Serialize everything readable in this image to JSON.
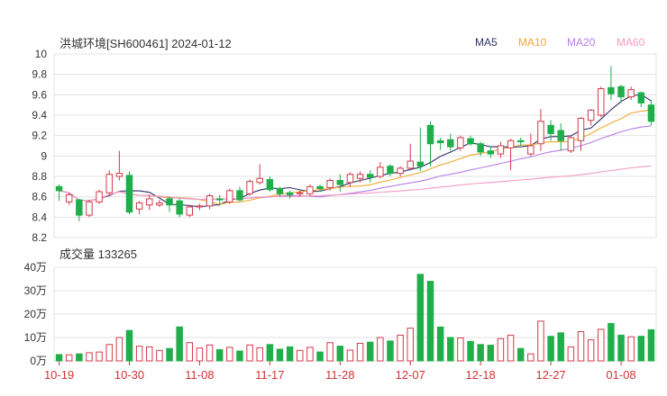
{
  "chart_data": {
    "type": "candlestick",
    "title": "洪城环境[SH600461] 2024-01-12",
    "volume_title": "成交量 133265",
    "legend": [
      {
        "name": "MA5",
        "color": "#2e2e6b"
      },
      {
        "name": "MA10",
        "color": "#f0a830"
      },
      {
        "name": "MA20",
        "color": "#b57ee6"
      },
      {
        "name": "MA60",
        "color": "#f29ac0"
      }
    ],
    "price_axis": {
      "min": 8.2,
      "max": 10,
      "ticks": [
        "8.2",
        "8.4",
        "8.6",
        "8.8",
        "9",
        "9.2",
        "9.4",
        "9.6",
        "9.8",
        "10"
      ]
    },
    "volume_axis": {
      "min": 0,
      "max": 40,
      "ticks": [
        "0万",
        "10万",
        "20万",
        "30万",
        "40万"
      ]
    },
    "x_ticks": [
      {
        "label": "10-19",
        "index": 0
      },
      {
        "label": "10-30",
        "index": 7
      },
      {
        "label": "11-08",
        "index": 14
      },
      {
        "label": "11-17",
        "index": 21
      },
      {
        "label": "11-28",
        "index": 28
      },
      {
        "label": "12-07",
        "index": 35
      },
      {
        "label": "12-18",
        "index": 42
      },
      {
        "label": "12-27",
        "index": 49
      },
      {
        "label": "01-08",
        "index": 56
      }
    ],
    "colors": {
      "up": "#d33a4a",
      "down": "#1fae4a"
    },
    "candles": [
      [
        8.7,
        8.66,
        8.72,
        8.56,
        2.7
      ],
      [
        8.55,
        8.62,
        8.64,
        8.52,
        2.6
      ],
      [
        8.57,
        8.42,
        8.58,
        8.36,
        3.0
      ],
      [
        8.42,
        8.55,
        8.57,
        8.4,
        3.5
      ],
      [
        8.55,
        8.65,
        8.67,
        8.53,
        3.8
      ],
      [
        8.64,
        8.82,
        8.86,
        8.62,
        7.0
      ],
      [
        8.8,
        8.83,
        9.05,
        8.76,
        10.0
      ],
      [
        8.81,
        8.45,
        8.85,
        8.43,
        13.0
      ],
      [
        8.48,
        8.54,
        8.56,
        8.43,
        6.3
      ],
      [
        8.52,
        8.58,
        8.62,
        8.47,
        6.0
      ],
      [
        8.52,
        8.54,
        8.57,
        8.5,
        4.5
      ],
      [
        8.58,
        8.52,
        8.6,
        8.45,
        5.3
      ],
      [
        8.56,
        8.43,
        8.58,
        8.4,
        14.5
      ],
      [
        8.42,
        8.5,
        8.52,
        8.4,
        7.8
      ],
      [
        8.5,
        8.51,
        8.53,
        8.47,
        5.5
      ],
      [
        8.51,
        8.61,
        8.63,
        8.48,
        6.8
      ],
      [
        8.58,
        8.57,
        8.62,
        8.51,
        4.8
      ],
      [
        8.55,
        8.66,
        8.68,
        8.53,
        5.8
      ],
      [
        8.66,
        8.57,
        8.7,
        8.55,
        4.2
      ],
      [
        8.63,
        8.75,
        8.77,
        8.61,
        6.8
      ],
      [
        8.74,
        8.78,
        8.92,
        8.72,
        5.6
      ],
      [
        8.77,
        8.67,
        8.8,
        8.65,
        7.0
      ],
      [
        8.68,
        8.63,
        8.7,
        8.6,
        5.0
      ],
      [
        8.64,
        8.62,
        8.66,
        8.58,
        6.0
      ],
      [
        8.63,
        8.64,
        8.66,
        8.6,
        4.5
      ],
      [
        8.63,
        8.7,
        8.72,
        8.61,
        5.8
      ],
      [
        8.7,
        8.68,
        8.72,
        8.65,
        3.8
      ],
      [
        8.69,
        8.76,
        8.78,
        8.66,
        7.8
      ],
      [
        8.76,
        8.72,
        8.82,
        8.65,
        6.3
      ],
      [
        8.74,
        8.82,
        8.84,
        8.7,
        4.6
      ],
      [
        8.78,
        8.82,
        8.85,
        8.74,
        7.5
      ],
      [
        8.82,
        8.79,
        8.86,
        8.74,
        8.0
      ],
      [
        8.8,
        8.89,
        8.94,
        8.78,
        10.0
      ],
      [
        8.9,
        8.83,
        8.92,
        8.8,
        8.5
      ],
      [
        8.83,
        8.88,
        8.9,
        8.8,
        11.0
      ],
      [
        8.88,
        8.95,
        9.12,
        8.86,
        14.0
      ],
      [
        8.94,
        8.9,
        9.28,
        8.85,
        37.0
      ],
      [
        9.3,
        9.12,
        9.34,
        8.9,
        34.0
      ],
      [
        9.15,
        9.13,
        9.18,
        9.06,
        14.5
      ],
      [
        9.16,
        9.09,
        9.22,
        9.05,
        10.0
      ],
      [
        9.08,
        9.18,
        9.2,
        9.05,
        9.8
      ],
      [
        9.17,
        9.12,
        9.2,
        9.1,
        8.3
      ],
      [
        9.12,
        9.04,
        9.14,
        9.0,
        7.0
      ],
      [
        9.05,
        9.02,
        9.1,
        8.98,
        6.7
      ],
      [
        9.02,
        9.1,
        9.14,
        8.98,
        9.5
      ],
      [
        9.08,
        9.15,
        9.17,
        8.86,
        11.0
      ],
      [
        9.15,
        9.14,
        9.18,
        9.1,
        5.3
      ],
      [
        9.02,
        9.1,
        9.22,
        9.0,
        3.0
      ],
      [
        9.12,
        9.34,
        9.46,
        9.05,
        17.0
      ],
      [
        9.3,
        9.22,
        9.35,
        9.15,
        10.5
      ],
      [
        9.25,
        9.15,
        9.32,
        9.05,
        12.0
      ],
      [
        9.05,
        9.18,
        9.2,
        9.03,
        6.0
      ],
      [
        9.15,
        9.37,
        9.38,
        9.05,
        12.5
      ],
      [
        9.35,
        9.45,
        9.46,
        9.3,
        9.0
      ],
      [
        9.4,
        9.66,
        9.68,
        9.38,
        13.5
      ],
      [
        9.67,
        9.61,
        9.88,
        9.55,
        16.0
      ],
      [
        9.68,
        9.58,
        9.7,
        9.52,
        11.0
      ],
      [
        9.58,
        9.65,
        9.68,
        9.55,
        10.3
      ],
      [
        9.62,
        9.52,
        9.63,
        9.48,
        10.5
      ],
      [
        9.5,
        9.34,
        9.55,
        9.3,
        13.3
      ]
    ]
  }
}
